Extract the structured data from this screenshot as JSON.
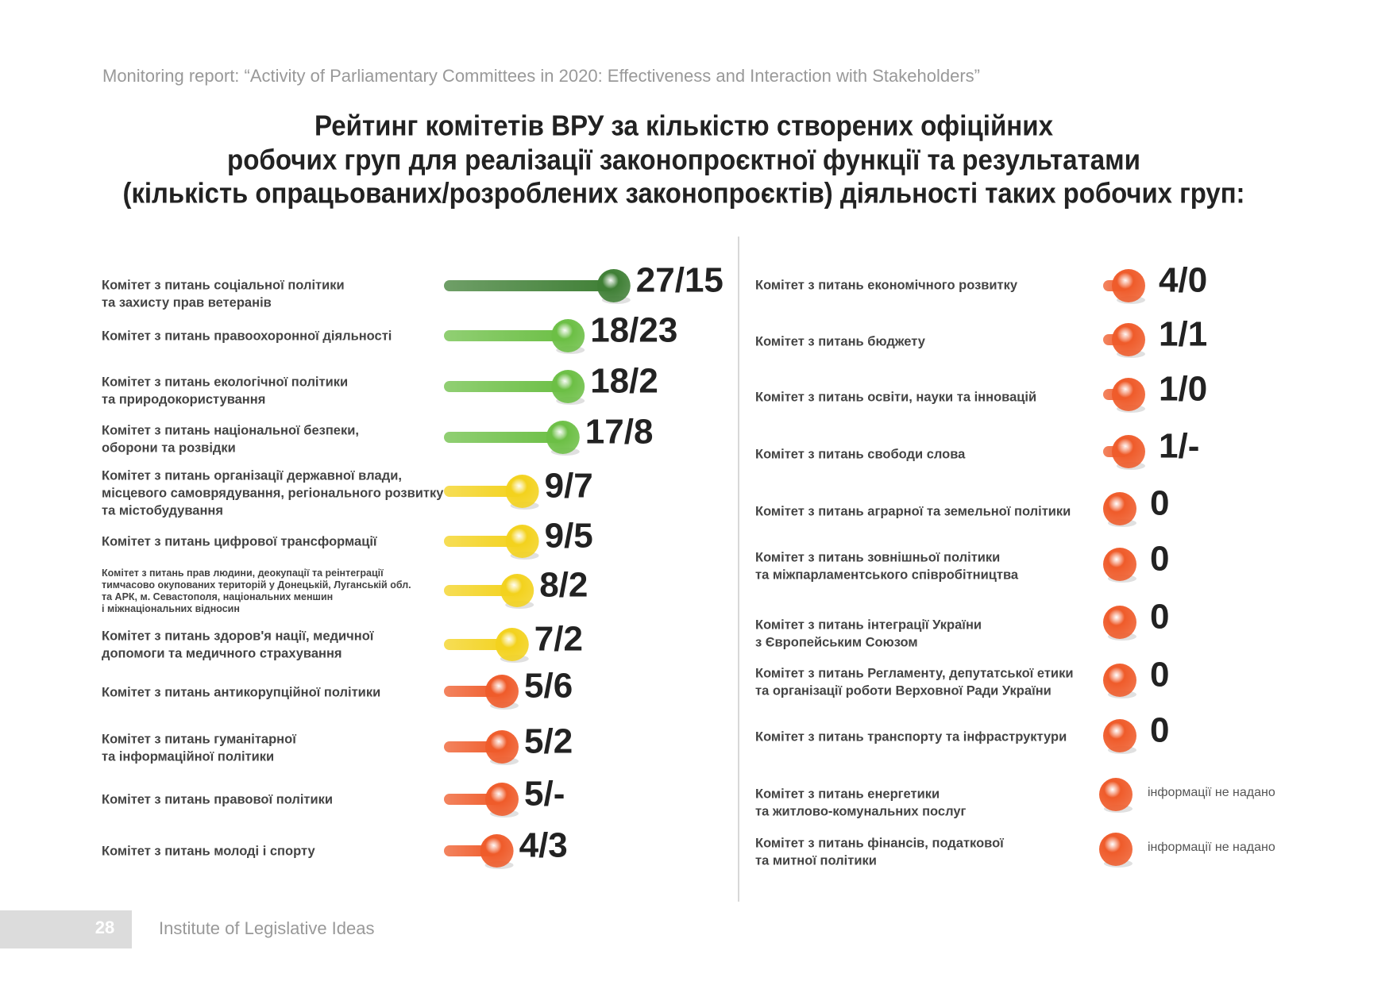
{
  "header": {
    "report": "Monitoring report: “Activity of Parliamentary Committees in 2020: Effectiveness and Interaction with Stakeholders”",
    "title": [
      "Рейтинг комітетів ВРУ за кількістю створених офіційних",
      "робочих груп для реалізації законопроєктної функції та результатами",
      "(кількість опрацьованих/розроблених законопроєктів) діяльності таких робочих груп:"
    ]
  },
  "left": [
    {
      "label": [
        "Комітет з питань соціальної політики",
        "та захисту прав ветеранів"
      ],
      "result": "27/15",
      "color": "#3f7f35"
    },
    {
      "label": [
        "Комітет з питань правоохоронної діяльності"
      ],
      "result": "18/23",
      "color": "#6cbf45"
    },
    {
      "label": [
        "Комітет з питань екологічної політики",
        "та природокористування"
      ],
      "result": "18/2",
      "color": "#6cbf45"
    },
    {
      "label": [
        "Комітет з питань національної безпеки,",
        "оборони та розвідки"
      ],
      "result": "17/8",
      "color": "#6cbf45"
    },
    {
      "label": [
        "Комітет з питань організації державної влади,",
        "місцевого самоврядування, регіонального розвитку",
        "та містобудування"
      ],
      "result": "9/7",
      "color": "#f3d21d"
    },
    {
      "label": [
        "Комітет з питань цифрової трансформації"
      ],
      "result": "9/5",
      "color": "#f3d21d"
    },
    {
      "label": [
        "Комітет з питань прав людини, деокупації та реінтеграції",
        "тимчасово окупованих територій у Донецькій, Луганській обл.",
        "та АРК, м. Севастополя, національних меншин",
        "і міжнаціональних відносин"
      ],
      "result": "8/2",
      "color": "#f3d21d"
    },
    {
      "label": [
        "Комітет з питань здоров'я нації, медичної",
        "допомоги та медичного страхування"
      ],
      "result": "7/2",
      "color": "#f3d21d"
    },
    {
      "label": [
        "Комітет з питань антикорупційної політики"
      ],
      "result": "5/6",
      "color": "#ef5b2a"
    },
    {
      "label": [
        "Комітет з питань гуманітарної",
        "та інформаційної політики"
      ],
      "result": "5/2",
      "color": "#ef5b2a"
    },
    {
      "label": [
        "Комітет з питань правової політики"
      ],
      "result": "5/-",
      "color": "#ef5b2a"
    },
    {
      "label": [
        "Комітет з питань молоді і спорту"
      ],
      "result": "4/3",
      "color": "#ef5b2a"
    }
  ],
  "right": [
    {
      "label": [
        "Комітет з питань економічного розвитку"
      ],
      "result": "4/0",
      "color": "#ef5b2a"
    },
    {
      "label": [
        "Комітет з питань бюджету"
      ],
      "result": "1/1",
      "color": "#ef5b2a"
    },
    {
      "label": [
        "Комітет з питань освіти, науки та інновацій"
      ],
      "result": "1/0",
      "color": "#ef5b2a"
    },
    {
      "label": [
        "Комітет з питань свободи слова"
      ],
      "result": "1/-",
      "color": "#ef5b2a"
    },
    {
      "label": [
        "Комітет з питань аграрної та земельної політики"
      ],
      "result": "0",
      "color": "#ef5b2a"
    },
    {
      "label": [
        "Комітет з питань зовнішньої політики",
        "та міжпарламентського співробітництва"
      ],
      "result": "0",
      "color": "#ef5b2a"
    },
    {
      "label": [
        "Комітет з питань інтеграції України",
        "з Європейським Союзом"
      ],
      "result": "0",
      "color": "#ef5b2a"
    },
    {
      "label": [
        "Комітет з питань Регламенту, депутатської етики",
        "та організації роботи Верховної Ради України"
      ],
      "result": "0",
      "color": "#ef5b2a"
    },
    {
      "label": [
        "Комітет з питань транспорту та інфраструктури"
      ],
      "result": "0",
      "color": "#ef5b2a"
    },
    {
      "label": [
        "Комітет з питань енергетики",
        "та житлово-комунальних послуг"
      ],
      "result": "інформації не надано",
      "color": "#ef5b2a"
    },
    {
      "label": [
        "Комітет з питань фінансів, податкової",
        "та митної політики"
      ],
      "result": "інформації не надано",
      "color": "#ef5b2a"
    }
  ],
  "footer": {
    "page": "28",
    "org": "Institute of Legislative Ideas"
  }
}
